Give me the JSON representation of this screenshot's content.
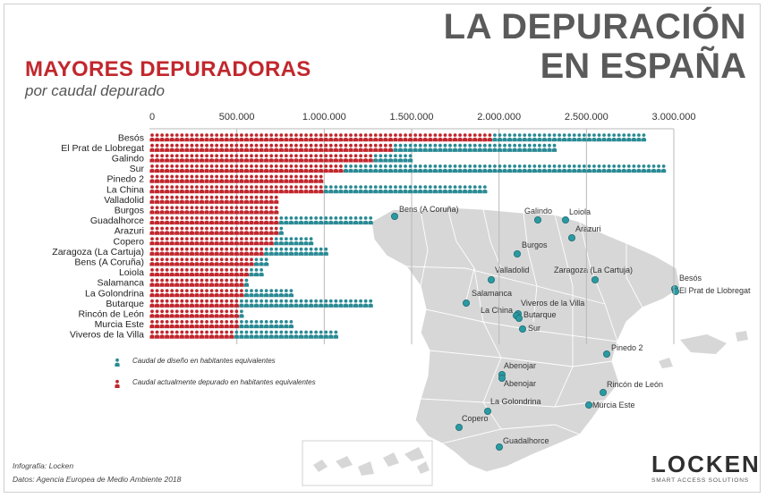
{
  "header": {
    "title_line1": "LA DEPURACIÓN",
    "title_line2": "EN ESPAÑA",
    "subtitle": "MAYORES DEPURADORAS",
    "subsubtitle": "por caudal depurado"
  },
  "chart_data": {
    "type": "bar",
    "orientation": "horizontal",
    "title": "MAYORES DEPURADORAS",
    "subtitle": "por caudal depurado",
    "xlim": [
      0,
      3000000
    ],
    "x_ticks": [
      "0",
      "500.000",
      "1.000.000",
      "1.500.000",
      "2.000.000",
      "2.500.000",
      "3.000.000"
    ],
    "grid": true,
    "categories": [
      "Besós",
      "El Prat de Llobregat",
      "Galindo",
      "Sur",
      "Pinedo 2",
      "La China",
      "Valladolid",
      "Burgos",
      "Guadalhorce",
      "Arazuri",
      "Copero",
      "Zaragoza (La Cartuja)",
      "Bens (A Coruña)",
      "Loiola",
      "Salamanca",
      "La Golondrina",
      "Butarque",
      "Rincón de León",
      "Murcia Este",
      "Viveros de la Villa"
    ],
    "series": [
      {
        "name": "Caudal actualmente depurado en habitantes equivalentes",
        "color": "#c1272d",
        "values": [
          1975000,
          1400000,
          1275000,
          1100000,
          1000000,
          1000000,
          750000,
          750000,
          750000,
          750000,
          700000,
          650000,
          600000,
          575000,
          550000,
          550000,
          500000,
          500000,
          500000,
          475000
        ]
      },
      {
        "name": "Caudal de diseño en habitantes equivalentes",
        "color": "#2a8a94",
        "values": [
          2850000,
          2325000,
          1500000,
          2950000,
          1000000,
          1925000,
          750000,
          750000,
          1275000,
          775000,
          950000,
          1025000,
          675000,
          650000,
          575000,
          825000,
          1275000,
          550000,
          825000,
          1100000
        ]
      }
    ],
    "legend_position": "bottom-left"
  },
  "legend": {
    "design": "Caudal de diseño en habitantes equivalentes",
    "actual": "Caudal actualmente depurado en habitantes equivalentes"
  },
  "map": {
    "label_color": "#333333",
    "dot_color": "#2a9aa2",
    "places": [
      {
        "label": "Bens (A Coruña)"
      },
      {
        "label": "Galindo"
      },
      {
        "label": "Loiola"
      },
      {
        "label": "Arazuri"
      },
      {
        "label": "Burgos"
      },
      {
        "label": "Valladolid"
      },
      {
        "label": "Zaragoza (La Cartuja)"
      },
      {
        "label": "Besós"
      },
      {
        "label": "El Prat de Llobregat"
      },
      {
        "label": "Salamanca"
      },
      {
        "label": "Viveros de la Villa"
      },
      {
        "label": "La China"
      },
      {
        "label": "Butarque"
      },
      {
        "label": "Sur"
      },
      {
        "label": "Pinedo 2"
      },
      {
        "label": "Abenojar"
      },
      {
        "label": "Abenojar"
      },
      {
        "label": "Rincón de León"
      },
      {
        "label": "La Golondrina"
      },
      {
        "label": "Murcia Este"
      },
      {
        "label": "Copero"
      },
      {
        "label": "Guadalhorce"
      }
    ]
  },
  "credits": {
    "infographic": "Infografía: Locken",
    "source": "Datos: Agencia Europea de Medio Ambiente 2018"
  },
  "logo": {
    "name": "LOCKEN",
    "tagline": "SMART ACCESS SOLUTIONS"
  }
}
